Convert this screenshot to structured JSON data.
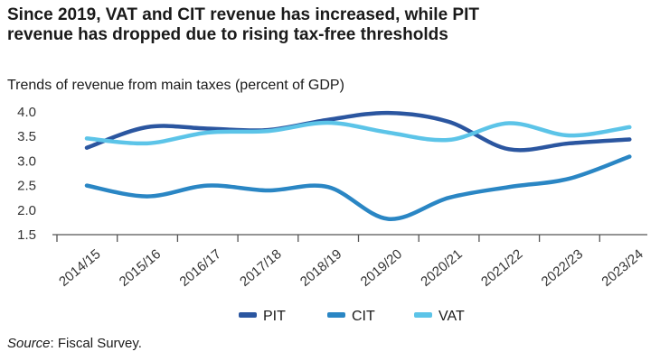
{
  "chart_data": {
    "type": "line",
    "title": "Since 2019, VAT and CIT revenue has increased, while PIT revenue has dropped due to rising tax-free thresholds",
    "subtitle": "Trends of revenue from main taxes (percent of GDP)",
    "source_label": "Source",
    "source_text": ": Fiscal Survey.",
    "categories": [
      "2014/15",
      "2015/16",
      "2016/17",
      "2017/18",
      "2018/19",
      "2019/20",
      "2020/21",
      "2021/22",
      "2022/23",
      "2023/24"
    ],
    "y_ticks": [
      "4.0",
      "3.5",
      "3.0",
      "2.5",
      "2.0",
      "1.5"
    ],
    "ylim": [
      1.5,
      4.0
    ],
    "grid": false,
    "legend_position": "bottom",
    "series": [
      {
        "name": "PIT",
        "color": "#2b56a0",
        "values": [
          3.27,
          3.69,
          3.66,
          3.63,
          3.84,
          3.98,
          3.8,
          3.24,
          3.36,
          3.44
        ]
      },
      {
        "name": "CIT",
        "color": "#2a86c4",
        "values": [
          2.5,
          2.28,
          2.5,
          2.4,
          2.47,
          1.82,
          2.25,
          2.47,
          2.64,
          3.09
        ]
      },
      {
        "name": "VAT",
        "color": "#5cc4e8",
        "values": [
          3.46,
          3.36,
          3.58,
          3.61,
          3.78,
          3.58,
          3.43,
          3.77,
          3.52,
          3.69
        ]
      }
    ]
  }
}
